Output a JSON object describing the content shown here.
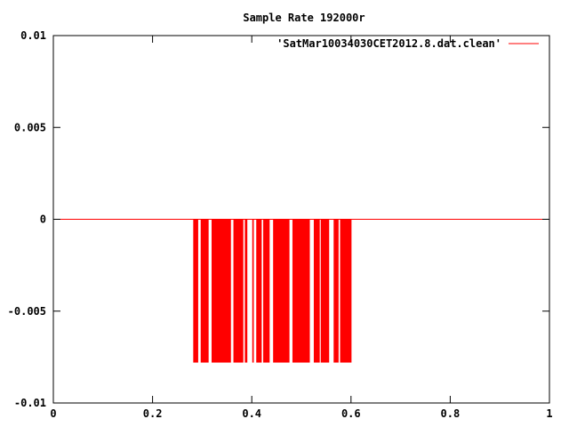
{
  "chart_data": {
    "type": "line",
    "title": "Sample Rate 192000r",
    "xlabel": "",
    "ylabel": "",
    "xlim": [
      0,
      1
    ],
    "ylim": [
      -0.01,
      0.01
    ],
    "x_ticks": [
      {
        "value": 0,
        "label": "0"
      },
      {
        "value": 0.2,
        "label": "0.2"
      },
      {
        "value": 0.4,
        "label": "0.4"
      },
      {
        "value": 0.6,
        "label": "0.6"
      },
      {
        "value": 0.8,
        "label": "0.8"
      },
      {
        "value": 1,
        "label": "1"
      }
    ],
    "y_ticks": [
      {
        "value": 0.01,
        "label": "0.01"
      },
      {
        "value": 0.005,
        "label": "0.005"
      },
      {
        "value": 0,
        "label": "0"
      },
      {
        "value": -0.005,
        "label": "-0.005"
      },
      {
        "value": -0.01,
        "label": "-0.01"
      }
    ],
    "grid": false,
    "legend_position": "top-right",
    "series": [
      {
        "name": "'SatMar10034030CET2012.8.dat.clean'",
        "color": "#ff0000",
        "baseline": 0,
        "pulse_level": -0.0078,
        "pulses": [
          [
            0.282,
            0.292
          ],
          [
            0.297,
            0.313
          ],
          [
            0.319,
            0.358
          ],
          [
            0.363,
            0.383
          ],
          [
            0.386,
            0.391
          ],
          [
            0.401,
            0.404
          ],
          [
            0.409,
            0.42
          ],
          [
            0.423,
            0.436
          ],
          [
            0.443,
            0.476
          ],
          [
            0.482,
            0.517
          ],
          [
            0.525,
            0.537
          ],
          [
            0.539,
            0.556
          ],
          [
            0.565,
            0.575
          ],
          [
            0.578,
            0.601
          ]
        ]
      }
    ]
  }
}
